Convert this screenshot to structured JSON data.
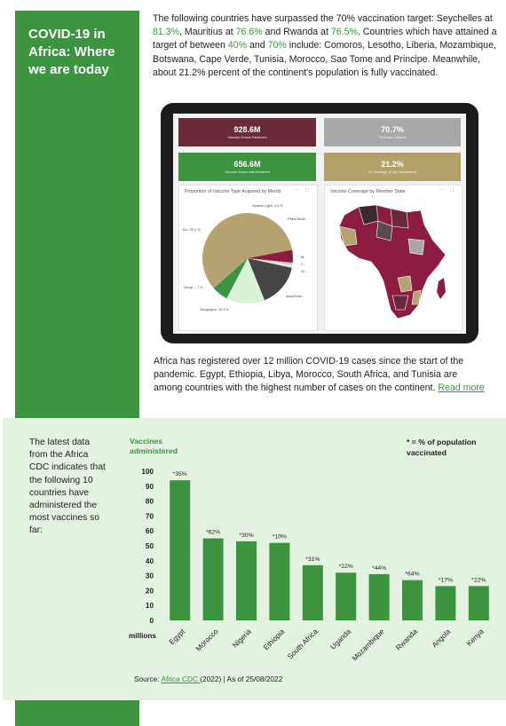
{
  "title": "COVID-19 in Africa: Where we are today",
  "intro": {
    "p1": "The following countries have surpassed the 70% vaccination target: Seychelles at ",
    "seychelles": "81.3%",
    "p2": ", Mauritius at ",
    "mauritius": "76.6%",
    "p3": " and Rwanda at ",
    "rwanda": "76.5%",
    "p4": ". Countries which have attained a target of between ",
    "low": "40%",
    "p5": " and ",
    "high": "70%",
    "p6": " include: Comoros, Lesotho, Liberia, Mozambique, Botswana, Cape Verde, Tunisia, Morocco, Sao Tome and Principe. Meanwhile, about 21.2% percent of the continent's population is fully vaccinated."
  },
  "dashboard": {
    "tiles": [
      {
        "value": "928.6M",
        "caption": "Vaccine Doses Received",
        "color": "#6b2a3a"
      },
      {
        "value": "70.7%",
        "caption": "% Doses Utilized",
        "color": "#a8a8a8"
      },
      {
        "value": "656.6M",
        "caption": "Vaccine Doses Administered",
        "color": "#3c9440"
      },
      {
        "value": "21.2%",
        "caption": "% Coverage (Fully Vaccinated)",
        "color": "#b2a26a"
      }
    ],
    "pie_panel_title": "Proportion of Vaccine Type Acquired by Memb",
    "map_panel_title": "Vaccine Coverage by Member State",
    "panel_tools": "⋯ ⛶",
    "pie_labels": [
      "Sputnik Light: 0.0 %",
      "Pfizer BioN...",
      "J&J: 29.4 %",
      "M...",
      "C...",
      "Si...",
      "AstraZene...",
      "Sinop...: 7.9...",
      "Sinopharm: 10.3 %"
    ],
    "pie_colors": [
      "#b5a472",
      "#8c1d40",
      "#c9c9c9",
      "#e6e6e6",
      "#454545",
      "#d8f2d6",
      "#3c9440"
    ]
  },
  "para2": {
    "text": "Africa has registered over 12 million COVID-19 cases since the start of the pandemic. Egypt, Ethiopia, Libya, Morocco, South Africa, and Tunisia are among countries with the highest number of cases on the continent. ",
    "link": "Read more"
  },
  "chart_intro": "The latest data from the Africa CDC indicates that the following 10 countries have administered the most vaccines so far:",
  "chart_note": "* = % of population vaccinated",
  "source": {
    "prefix": "Source: ",
    "link": "Africa CDC ",
    "suffix": "(2022) | As of 25/08/2022"
  },
  "chart_data": {
    "type": "bar",
    "title": "Vaccines administered",
    "ylabel": "millions",
    "ylim": [
      0,
      100
    ],
    "yticks": [
      0,
      10,
      20,
      30,
      40,
      50,
      60,
      70,
      80,
      90,
      100
    ],
    "categories": [
      "Egypt",
      "Morocco",
      "Nigeria",
      "Ethiopia",
      "South Africa",
      "Uganda",
      "Mozambique",
      "Rwanda",
      "Angola",
      "Kenya"
    ],
    "values": [
      94,
      55,
      53,
      52,
      37,
      32,
      31,
      27,
      23,
      23
    ],
    "bar_labels": [
      "*35%",
      "*62%",
      "*30%",
      "*10%",
      "*31%",
      "*22%",
      "*44%",
      "*64%",
      "*17%",
      "*22%"
    ],
    "bar_color": "#3c9440",
    "grid": false
  }
}
